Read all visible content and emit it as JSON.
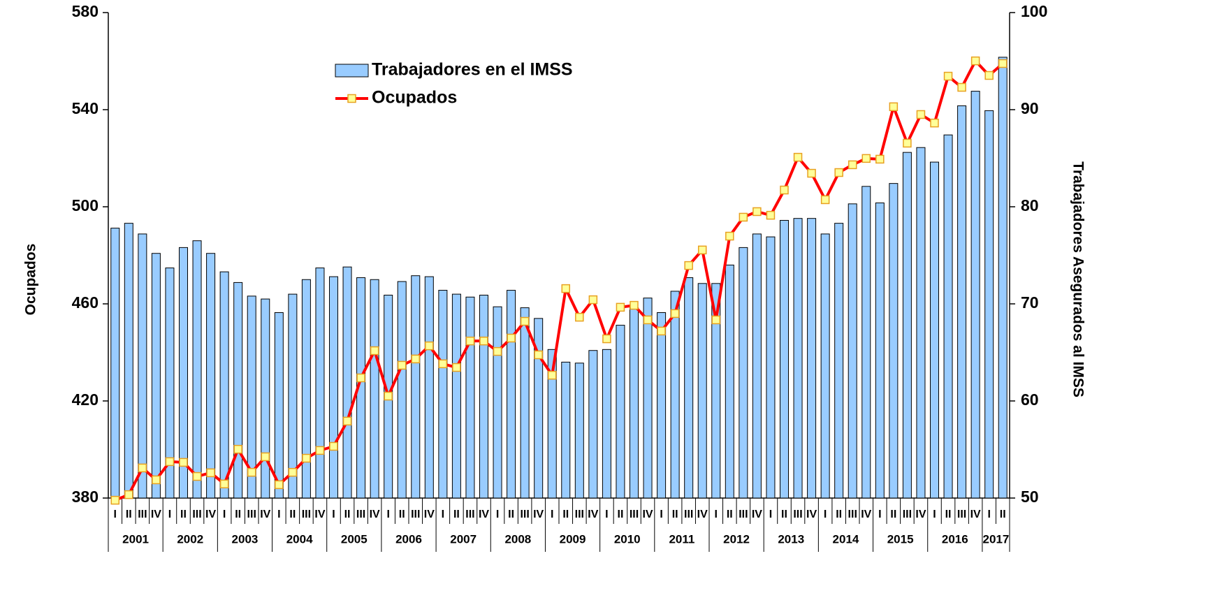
{
  "chart_data": {
    "type": "bar",
    "y_label": "Ocupados",
    "y2_label": "Trabajadores Asegurados al IMSS",
    "categories": [
      "I",
      "II",
      "III",
      "IV",
      "I",
      "II",
      "III",
      "IV",
      "I",
      "II",
      "III",
      "IV",
      "I",
      "II",
      "III",
      "IV",
      "I",
      "II",
      "III",
      "IV",
      "I",
      "II",
      "III",
      "IV",
      "I",
      "II",
      "III",
      "IV",
      "I",
      "II",
      "III",
      "IV",
      "I",
      "II",
      "III",
      "IV",
      "I",
      "II",
      "III",
      "IV",
      "I",
      "II",
      "III",
      "IV",
      "I",
      "II",
      "III",
      "IV",
      "I",
      "II",
      "III",
      "IV",
      "I",
      "II",
      "III",
      "IV",
      "I",
      "II",
      "III",
      "IV",
      "I",
      "II",
      "III",
      "IV",
      "I",
      "II"
    ],
    "years": [
      "2001",
      "2002",
      "2003",
      "2004",
      "2005",
      "2006",
      "2007",
      "2008",
      "2009",
      "2010",
      "2011",
      "2012",
      "2013",
      "2014",
      "2015",
      "2016",
      "2017"
    ],
    "ylim": [
      380,
      580
    ],
    "yticks": [
      380,
      420,
      460,
      500,
      540,
      580
    ],
    "y2lim": [
      50,
      100
    ],
    "y2ticks": [
      50,
      60,
      70,
      80,
      90,
      100
    ],
    "legend": "top",
    "series": [
      {
        "name": "Trabajadores en el IMSS",
        "type": "bar",
        "axis": "y2",
        "color": "#99ccff",
        "values": [
          77.8,
          78.3,
          77.2,
          75.2,
          73.7,
          75.8,
          76.5,
          75.2,
          73.3,
          72.2,
          70.8,
          70.5,
          69.1,
          71.0,
          72.5,
          73.7,
          72.8,
          73.8,
          72.7,
          72.5,
          70.9,
          72.3,
          72.9,
          72.8,
          71.4,
          71.0,
          70.7,
          70.9,
          69.7,
          71.4,
          69.6,
          68.5,
          65.3,
          64.0,
          63.9,
          65.2,
          65.3,
          67.8,
          69.6,
          70.6,
          69.1,
          71.3,
          72.7,
          72.1,
          72.1,
          74.0,
          75.8,
          77.2,
          76.9,
          78.6,
          78.8,
          78.8,
          77.2,
          78.3,
          80.3,
          82.1,
          80.4,
          82.4,
          85.6,
          86.1,
          84.6,
          87.4,
          90.4,
          91.9,
          89.9,
          95.4
        ]
      },
      {
        "name": "Ocupados",
        "type": "line",
        "color": "#ff0000",
        "marker_color": "#ffff99",
        "values": [
          379.1,
          381.4,
          392.4,
          387.5,
          395.0,
          394.7,
          388.9,
          390.4,
          385.8,
          400.1,
          390.6,
          397.0,
          385.5,
          390.6,
          396.4,
          399.6,
          401.3,
          411.7,
          429.5,
          440.7,
          422.0,
          434.7,
          437.3,
          442.7,
          435.3,
          433.8,
          444.7,
          444.7,
          440.4,
          445.9,
          452.8,
          439.0,
          430.6,
          466.3,
          454.5,
          461.7,
          445.6,
          458.6,
          459.4,
          453.4,
          448.8,
          456.0,
          475.8,
          482.2,
          453.4,
          487.9,
          495.7,
          498.0,
          496.5,
          506.9,
          520.4,
          513.8,
          502.9,
          514.1,
          517.3,
          519.9,
          519.6,
          541.2,
          526.2,
          538.0,
          534.5,
          553.8,
          549.2,
          560.1,
          554.1,
          559.0
        ]
      }
    ]
  }
}
